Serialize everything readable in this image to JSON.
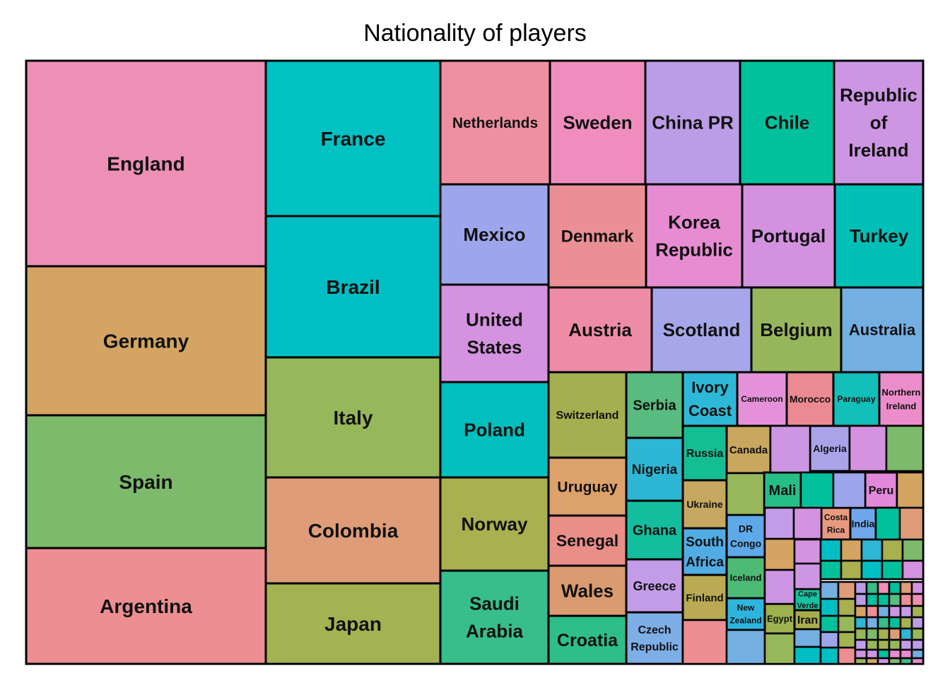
{
  "chart_data": {
    "type": "treemap",
    "title": "Nationality of players",
    "tiles": [
      {
        "label": "England",
        "color": "#EE8FB5"
      },
      {
        "label": "Germany",
        "color": "#D4A463"
      },
      {
        "label": "Spain",
        "color": "#7DBA6B"
      },
      {
        "label": "Argentina",
        "color": "#EC8E92"
      },
      {
        "label": "France",
        "color": "#00C1C4"
      },
      {
        "label": "Brazil",
        "color": "#00BFC4"
      },
      {
        "label": "Italy",
        "color": "#97B75B"
      },
      {
        "label": "Colombia",
        "color": "#DF9C79"
      },
      {
        "label": "Japan",
        "color": "#A4B352"
      },
      {
        "label": "Netherlands",
        "color": "#EE8FA2"
      },
      {
        "label": "Sweden",
        "color": "#EF8EBE"
      },
      {
        "label": "China PR",
        "color": "#BB9DE7"
      },
      {
        "label": "Chile",
        "color": "#00C19C"
      },
      {
        "label": "Republic of Ireland",
        "color": "#CC96E2"
      },
      {
        "label": "Mexico",
        "color": "#9DA6EB"
      },
      {
        "label": "United States",
        "color": "#D592E1"
      },
      {
        "label": "Poland",
        "color": "#00BFBE"
      },
      {
        "label": "Norway",
        "color": "#A8B04F"
      },
      {
        "label": "Saudi Arabia",
        "color": "#37BE8A"
      },
      {
        "label": "Denmark",
        "color": "#EB8F96"
      },
      {
        "label": "Korea Republic",
        "color": "#E78BD2"
      },
      {
        "label": "Portugal",
        "color": "#D491E0"
      },
      {
        "label": "Turkey",
        "color": "#00BFB7"
      },
      {
        "label": "Austria",
        "color": "#EE8CA6"
      },
      {
        "label": "Scotland",
        "color": "#A6A6EB"
      },
      {
        "label": "Belgium",
        "color": "#97B65B"
      },
      {
        "label": "Australia",
        "color": "#74AFE2"
      },
      {
        "label": "Switzerland",
        "color": "#A4B04F"
      },
      {
        "label": "Uruguay",
        "color": "#DDA16B"
      },
      {
        "label": "Senegal",
        "color": "#EA8E88"
      },
      {
        "label": "Wales",
        "color": "#DB9B70"
      },
      {
        "label": "Croatia",
        "color": "#2EBE8A"
      },
      {
        "label": "Serbia",
        "color": "#58BB7F"
      },
      {
        "label": "Nigeria",
        "color": "#2EB7D4"
      },
      {
        "label": "Ghana",
        "color": "#13BE9F"
      },
      {
        "label": "Greece",
        "color": "#C39CE8"
      },
      {
        "label": "Czech Republic",
        "color": "#7EAEE6"
      },
      {
        "label": "Ivory Coast",
        "color": "#2EB8D8"
      },
      {
        "label": "Cameroon",
        "color": "#E491DA"
      },
      {
        "label": "Morocco",
        "color": "#EC8A93"
      },
      {
        "label": "Paraguay",
        "color": "#12BFB9"
      },
      {
        "label": "Northern Ireland",
        "color": "#EB8DCA"
      },
      {
        "label": "Russia",
        "color": "#14BE93"
      },
      {
        "label": "Canada",
        "color": "#C9A75E"
      },
      {
        "label": "Algeria",
        "color": "#AAA3EA"
      },
      {
        "label": "Ukraine",
        "color": "#C6A860"
      },
      {
        "label": "Mali",
        "color": "#26BE88"
      },
      {
        "label": "Peru",
        "color": "#E188DA"
      },
      {
        "label": "DR Congo",
        "color": "#5EA9E7"
      },
      {
        "label": "South Africa",
        "color": "#52ACE4"
      },
      {
        "label": "Costa Rica",
        "color": "#E89A80"
      },
      {
        "label": "India",
        "color": "#6FA7EA"
      },
      {
        "label": "Finland",
        "color": "#B9AA53"
      },
      {
        "label": "Iceland",
        "color": "#4DBB76"
      },
      {
        "label": "New Zealand",
        "color": "#2EB5DD"
      },
      {
        "label": "Egypt",
        "color": "#9EB24F"
      },
      {
        "label": "Cape Verde",
        "color": "#16C2A3"
      },
      {
        "label": "Iran",
        "color": "#A8AC4C"
      }
    ]
  }
}
